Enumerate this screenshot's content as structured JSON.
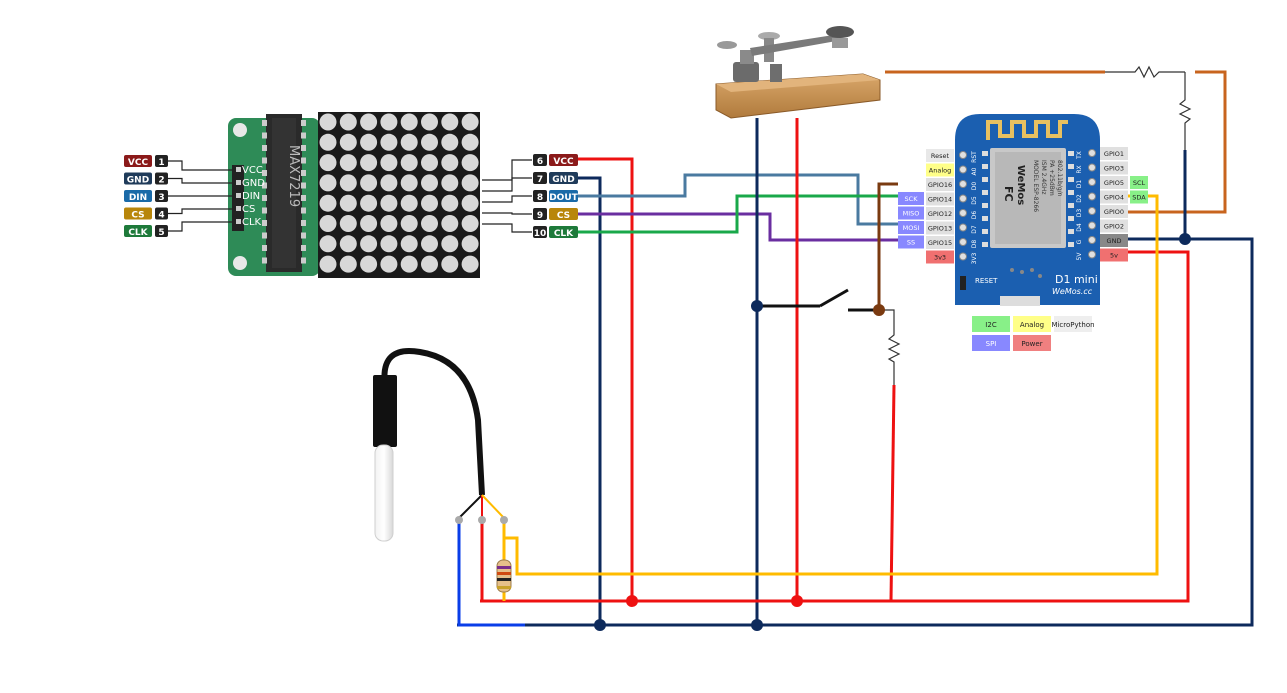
{
  "colors": {
    "vcc": "#8b1a1a",
    "gnd": "#1f3b5a",
    "din": "#1a6aa8",
    "cs": "#b8860b",
    "clk": "#1e7a3a",
    "wire_red": "#ee1111",
    "wire_navy": "#0d2a5c",
    "wire_green": "#19a84a",
    "wire_purple": "#6a2ea0",
    "wire_steel": "#4a7aa0",
    "wire_brown": "#7a3a10",
    "wire_orange": "#c8641e",
    "wire_yellow": "#ffbb00",
    "wire_blue": "#0a3ee8",
    "board_blue": "#1b5fb0",
    "matrix_green": "#2e8b57"
  },
  "matrix": {
    "chip_label": "MAX7219",
    "left_pins": [
      {
        "num": "1",
        "label": "VCC",
        "board": "VCC"
      },
      {
        "num": "2",
        "label": "GND",
        "board": "GND"
      },
      {
        "num": "3",
        "label": "DIN",
        "board": "DIN"
      },
      {
        "num": "4",
        "label": "CS",
        "board": "CS"
      },
      {
        "num": "5",
        "label": "CLK",
        "board": "CLK"
      }
    ],
    "right_pins": [
      {
        "num": "6",
        "label": "VCC"
      },
      {
        "num": "7",
        "label": "GND"
      },
      {
        "num": "8",
        "label": "DOUT"
      },
      {
        "num": "9",
        "label": "CS"
      },
      {
        "num": "10",
        "label": "CLK"
      }
    ]
  },
  "d1mini": {
    "left_labels": [
      {
        "text": "Reset",
        "color": "#e8e8e8"
      },
      {
        "text": "Analog",
        "color": "#ffff88"
      },
      {
        "text": "GPIO16",
        "color": "#e0e0e0"
      },
      {
        "text": "GPIO14",
        "color": "#e0e0e0"
      },
      {
        "text": "GPIO12",
        "color": "#e0e0e0"
      },
      {
        "text": "GPIO13",
        "color": "#e0e0e0"
      },
      {
        "text": "GPIO15",
        "color": "#e0e0e0"
      },
      {
        "text": "3v3",
        "color": "#f07070"
      }
    ],
    "spi_labels": [
      "SCK",
      "MISO",
      "MOSI",
      "SS"
    ],
    "right_labels": [
      {
        "text": "GPIO1",
        "color": "#e0e0e0"
      },
      {
        "text": "GPIO3",
        "color": "#e0e0e0"
      },
      {
        "text": "GPIO5",
        "color": "#e0e0e0"
      },
      {
        "text": "GPIO4",
        "color": "#e0e0e0"
      },
      {
        "text": "GPIO0",
        "color": "#e0e0e0"
      },
      {
        "text": "GPIO2",
        "color": "#e0e0e0"
      },
      {
        "text": "GND",
        "color": "#888888"
      },
      {
        "text": "5v",
        "color": "#f07070"
      }
    ],
    "i2c_labels": [
      "SCL",
      "SDA"
    ],
    "board_left_pins": [
      "RST",
      "A0",
      "D0",
      "D5",
      "D6",
      "D7",
      "D8",
      "3V3"
    ],
    "board_right_pins": [
      "TX",
      "RX",
      "D1",
      "D2",
      "D3",
      "D4",
      "G",
      "5V"
    ],
    "reset_label": "RESET",
    "brand_title": "D1 mini",
    "brand_sub": "WeMos.cc",
    "module_text": [
      "MODEL ESP-8266",
      "ISM 2.4GHz",
      "PA +25dBm",
      "802.11b/g/n"
    ],
    "fc_label": "FC",
    "module_brand": "WeMos"
  },
  "legend": [
    {
      "text": "I2C",
      "color": "#88f088"
    },
    {
      "text": "Analog",
      "color": "#ffff88"
    },
    {
      "text": "MicroPython",
      "color": "#eeeeee"
    },
    {
      "text": "SPI",
      "color": "#8888ff"
    },
    {
      "text": "Power",
      "color": "#f08080"
    }
  ]
}
